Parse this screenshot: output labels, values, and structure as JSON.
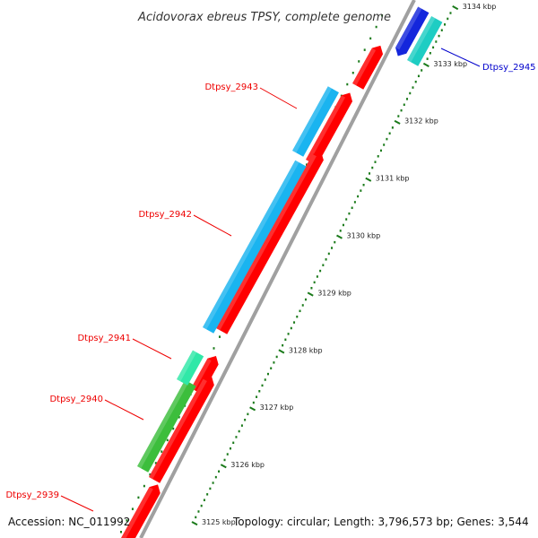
{
  "header": {
    "title": "Acidovorax ebreus TPSY, complete genome"
  },
  "footer": {
    "accession": "Accession: NC_011992",
    "topology": "Topology: circular; Length: 3,796,573 bp; Genes: 3,544"
  },
  "colors": {
    "forward_cds": "#ff0000",
    "reverse_cds": "#1ab4f0",
    "cds_cyan": "#1ecdc3",
    "cds_blue": "#1426dc",
    "cds_green": "#3cbe3c",
    "cds_mint": "#30e8a8",
    "backbone": "#a0a0a0",
    "tick": "#1a7a1a",
    "label_red": "#ee0000",
    "label_blue": "#0000cc"
  },
  "ruler": {
    "unit": "kbp",
    "ticks": [
      {
        "label": "3125 kbp"
      },
      {
        "label": "3126 kbp"
      },
      {
        "label": "3127 kbp"
      },
      {
        "label": "3128 kbp"
      },
      {
        "label": "3129 kbp"
      },
      {
        "label": "3130 kbp"
      },
      {
        "label": "3131 kbp"
      },
      {
        "label": "3132 kbp"
      },
      {
        "label": "3133 kbp"
      },
      {
        "label": "3134 kbp"
      }
    ]
  },
  "gene_labels": [
    {
      "name": "Dtpsy_2945",
      "color": "label_blue"
    },
    {
      "name": "Dtpsy_2943",
      "color": "label_red"
    },
    {
      "name": "Dtpsy_2942",
      "color": "label_red"
    },
    {
      "name": "Dtpsy_2941",
      "color": "label_red"
    },
    {
      "name": "Dtpsy_2940",
      "color": "label_red"
    },
    {
      "name": "Dtpsy_2939",
      "color": "label_red"
    }
  ]
}
